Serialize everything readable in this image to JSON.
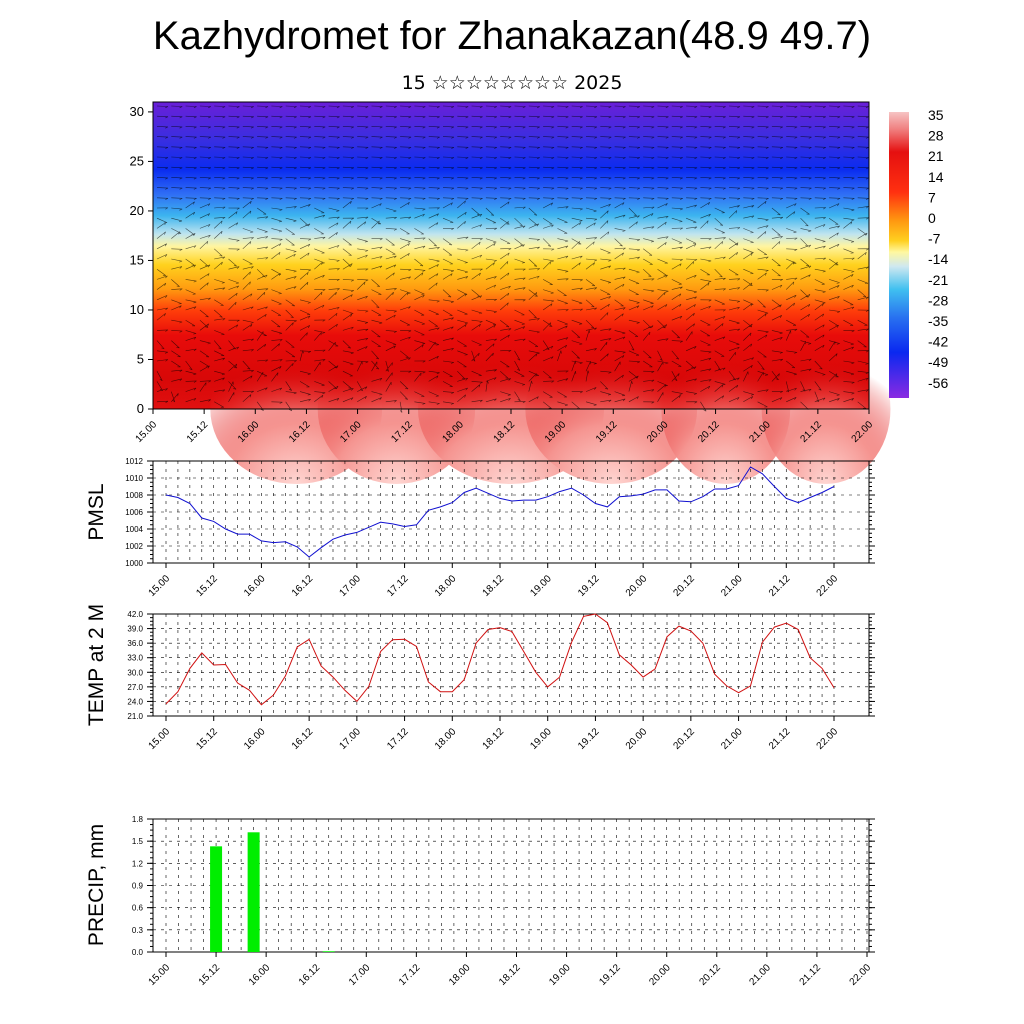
{
  "title": "Kazhydromet for Zhanakazan(48.9 49.7)",
  "subtitle": "15 ☆☆☆☆☆☆☆☆ 2025",
  "time_labels": [
    "15.00",
    "15.12",
    "16.00",
    "16.12",
    "17.00",
    "17.12",
    "18.00",
    "18.12",
    "19.00",
    "19.12",
    "20.00",
    "20.12",
    "21.00",
    "21.12",
    "22.00"
  ],
  "chart_data": [
    {
      "type": "heatmap",
      "name": "cross-section",
      "ylim": [
        0,
        31
      ],
      "yticks": [
        0,
        5,
        10,
        15,
        20,
        25,
        30
      ],
      "colorbar": {
        "labels": [
          "35",
          "28",
          "21",
          "14",
          "7",
          "0",
          "-7",
          "-14",
          "-21",
          "-28",
          "-35",
          "-42",
          "-49",
          "-56"
        ]
      }
    },
    {
      "type": "line",
      "ylabel": "PMSL",
      "color": "#1010d0",
      "ylim": [
        1000,
        1012
      ],
      "yticks": [
        1000,
        1002,
        1004,
        1006,
        1008,
        1010,
        1012
      ],
      "x": [
        0,
        1,
        2,
        3,
        4,
        5,
        6,
        7,
        8,
        9,
        10,
        11,
        12,
        13,
        14,
        15,
        16,
        17,
        18,
        19,
        20,
        21,
        22,
        23,
        24,
        25,
        26,
        27,
        28,
        29,
        30,
        31,
        32,
        33,
        34,
        35,
        36,
        37,
        38,
        39,
        40,
        41,
        42,
        43,
        44,
        45,
        46,
        47,
        48,
        49,
        50,
        51,
        52,
        53,
        54,
        55,
        56
      ],
      "values": [
        1008.0,
        1007.7,
        1007.0,
        1005.3,
        1004.9,
        1004.0,
        1003.4,
        1003.4,
        1002.6,
        1002.4,
        1002.5,
        1001.9,
        1000.7,
        1001.8,
        1002.8,
        1003.3,
        1003.6,
        1004.2,
        1004.8,
        1004.6,
        1004.3,
        1004.5,
        1006.2,
        1006.6,
        1007.1,
        1008.3,
        1008.8,
        1008.2,
        1007.6,
        1007.3,
        1007.4,
        1007.4,
        1007.8,
        1008.4,
        1008.8,
        1008.0,
        1007.0,
        1006.6,
        1007.8,
        1007.9,
        1008.1,
        1008.6,
        1008.6,
        1007.3,
        1007.2,
        1007.8,
        1008.7,
        1008.7,
        1009.1,
        1011.3,
        1010.5,
        1009.0,
        1007.6,
        1007.1,
        1007.7,
        1008.3,
        1009.0
      ]
    },
    {
      "type": "line",
      "ylabel": "TEMP at 2 M",
      "color": "#d01010",
      "ylim": [
        21,
        42
      ],
      "yticks": [
        "21.0",
        "24.0",
        "27.0",
        "30.0",
        "33.0",
        "36.0",
        "39.0",
        "42.0"
      ],
      "x": [
        0,
        1,
        2,
        3,
        4,
        5,
        6,
        7,
        8,
        9,
        10,
        11,
        12,
        13,
        14,
        15,
        16,
        17,
        18,
        19,
        20,
        21,
        22,
        23,
        24,
        25,
        26,
        27,
        28,
        29,
        30,
        31,
        32,
        33,
        34,
        35,
        36,
        37,
        38,
        39,
        40,
        41,
        42,
        43,
        44,
        45,
        46,
        47,
        48,
        49,
        50,
        51,
        52,
        53,
        54,
        55,
        56
      ],
      "values": [
        23.5,
        26.0,
        30.8,
        34.0,
        31.5,
        31.6,
        27.8,
        26.3,
        23.3,
        25.3,
        29.2,
        35.2,
        36.8,
        31.3,
        29.0,
        26.3,
        24.0,
        27.1,
        34.3,
        36.7,
        36.8,
        35.3,
        28.0,
        26.0,
        26.0,
        28.5,
        36.0,
        38.8,
        39.2,
        38.4,
        34.2,
        30.0,
        27.0,
        29.0,
        36.2,
        41.5,
        42.0,
        40.2,
        33.6,
        31.5,
        29.0,
        30.7,
        37.3,
        39.5,
        38.5,
        36.0,
        29.6,
        27.2,
        25.8,
        27.2,
        36.2,
        39.3,
        40.1,
        38.8,
        33.0,
        30.8,
        26.8
      ]
    },
    {
      "type": "bar",
      "ylabel": "PRECIP, mm",
      "color": "#00ee00",
      "ylim": [
        0,
        1.8
      ],
      "yticks": [
        "0.0",
        "0.3",
        "0.6",
        "0.9",
        "1.2",
        "1.5",
        "1.8"
      ],
      "x": [
        4,
        7,
        13
      ],
      "values": [
        1.43,
        1.62,
        0.01
      ]
    }
  ]
}
